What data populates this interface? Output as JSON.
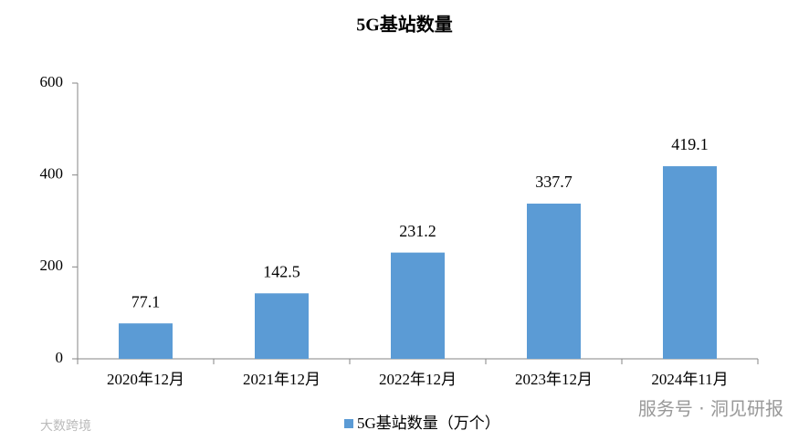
{
  "chart_data": {
    "type": "bar",
    "title": "5G基站数量",
    "categories": [
      "2020年12月",
      "2021年12月",
      "2022年12月",
      "2023年12月",
      "2024年11月"
    ],
    "series": [
      {
        "name": "5G基站数量（万个）",
        "color": "#5b9bd5",
        "values": [
          77.1,
          142.5,
          231.2,
          337.7,
          419.1
        ]
      }
    ],
    "ylim": [
      0,
      600
    ],
    "yticks": [
      0,
      200,
      400,
      600
    ],
    "grid": false,
    "legend": "bottom"
  },
  "watermarks": [
    "服务号 · 洞见研报",
    "大数跨境"
  ]
}
